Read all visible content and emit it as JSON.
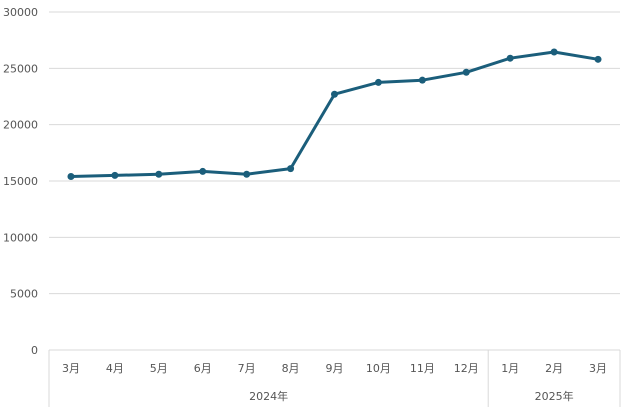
{
  "chart_data": {
    "type": "line",
    "title": "",
    "xlabel": "",
    "ylabel": "",
    "ylim": [
      0,
      30000
    ],
    "yticks": [
      0,
      5000,
      10000,
      15000,
      20000,
      25000,
      30000
    ],
    "grid": true,
    "legend": "none",
    "categories": [
      "3月",
      "4月",
      "5月",
      "6月",
      "7月",
      "8月",
      "9月",
      "10月",
      "11月",
      "12月",
      "1月",
      "2月",
      "3月"
    ],
    "groups": [
      {
        "label": "2024年",
        "count": 10
      },
      {
        "label": "2025年",
        "count": 3
      }
    ],
    "series": [
      {
        "color": "#1b5e7b",
        "values": [
          15400,
          15500,
          15600,
          15850,
          15600,
          16100,
          22700,
          23750,
          23950,
          24650,
          25900,
          26450,
          25800
        ]
      }
    ]
  }
}
